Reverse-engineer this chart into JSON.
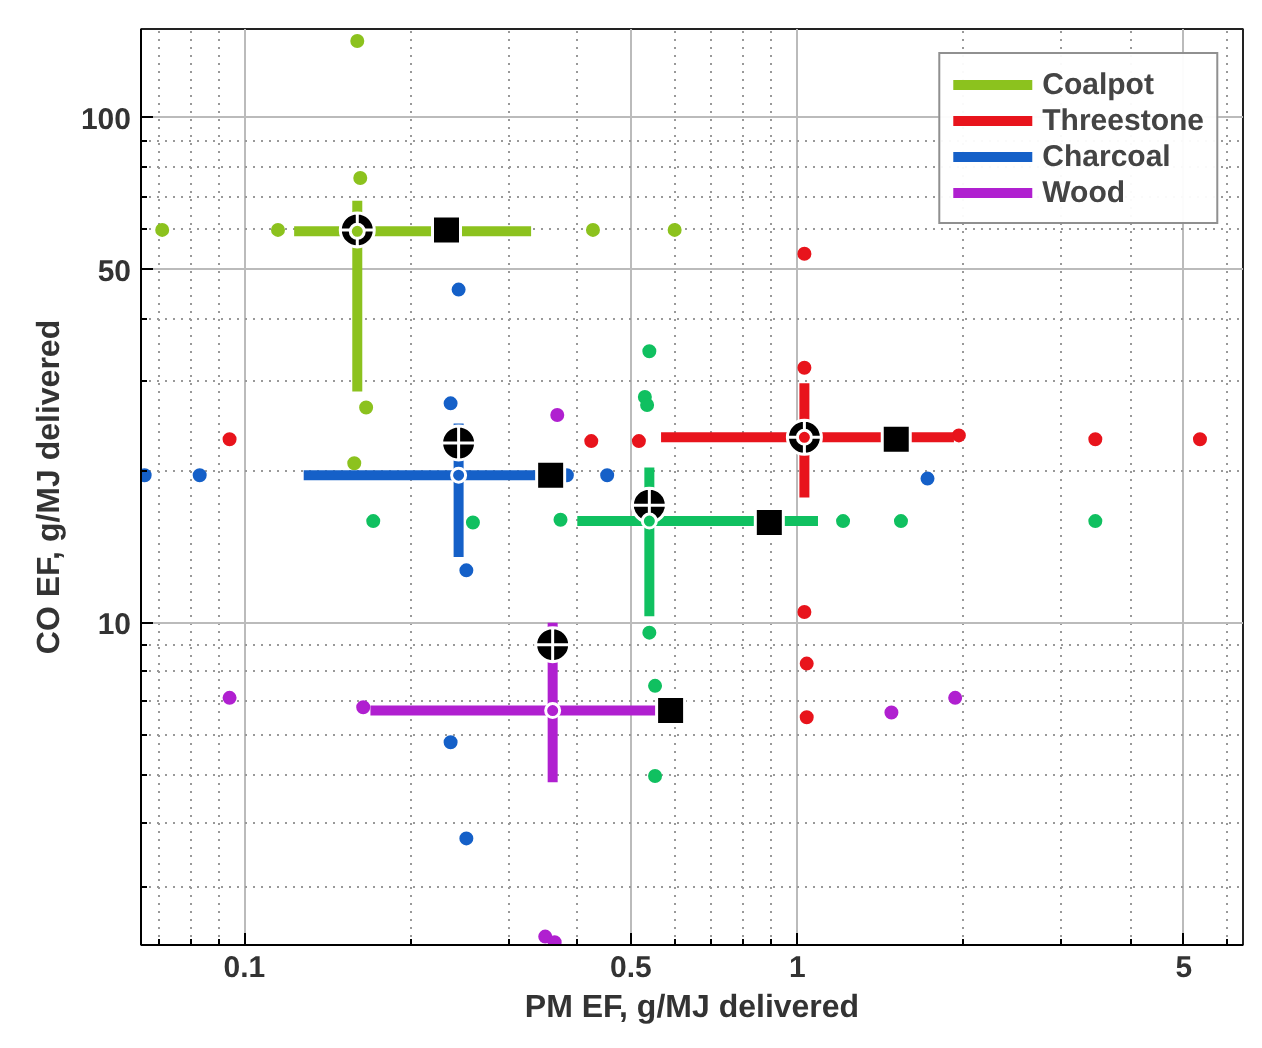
{
  "chart_data": {
    "type": "scatter",
    "xlabel": "PM EF, g/MJ delivered",
    "ylabel": "CO EF, g/MJ delivered",
    "log": "xy",
    "grid": true,
    "legend": "top right",
    "xlim": [
      0.065,
      6.4
    ],
    "ylim": [
      2.3,
      150
    ],
    "xticks": [
      {
        "value": 0.07,
        "label": null
      },
      {
        "value": 0.08,
        "label": null
      },
      {
        "value": 0.09,
        "label": null
      },
      0.1,
      {
        "value": 0.2,
        "label": null
      },
      {
        "value": 0.3,
        "label": null
      },
      {
        "value": 0.4,
        "label": null
      },
      0.5,
      {
        "value": 0.6,
        "label": null
      },
      {
        "value": 0.7,
        "label": null
      },
      {
        "value": 0.8,
        "label": null
      },
      {
        "value": 0.9,
        "label": null
      },
      1,
      {
        "value": 2,
        "label": null
      },
      {
        "value": 3,
        "label": null
      },
      {
        "value": 4,
        "label": null
      },
      5,
      {
        "value": 6,
        "label": null
      }
    ],
    "yticks": [
      {
        "value": 3,
        "label": null
      },
      {
        "value": 4,
        "label": null
      },
      {
        "value": 5,
        "label": null
      },
      {
        "value": 6,
        "label": null
      },
      {
        "value": 7,
        "label": null
      },
      {
        "value": 8,
        "label": null
      },
      {
        "value": 9,
        "label": null
      },
      10,
      {
        "value": 20,
        "label": null
      },
      {
        "value": 30,
        "label": null
      },
      {
        "value": 40,
        "label": null
      },
      50,
      {
        "value": 60,
        "label": null
      },
      {
        "value": 70,
        "label": null
      },
      {
        "value": 80,
        "label": null
      },
      {
        "value": 90,
        "label": null
      },
      100
    ],
    "series": [
      {
        "marker": "circle",
        "color": "#8cc21e",
        "x": [
          0.16,
          0.162,
          0.071,
          0.115,
          0.427,
          0.6,
          0.166,
          0.158
        ],
        "values": [
          142,
          76,
          60,
          60,
          60,
          60,
          26.7,
          20.7
        ]
      },
      {
        "marker": "circle",
        "color": "#e8141c",
        "x": [
          0.094,
          0.424,
          0.517,
          1.03,
          1.03,
          1.96,
          3.46,
          5.35,
          1.03,
          1.04,
          1.04
        ],
        "values": [
          23.1,
          22.9,
          22.9,
          53.8,
          32,
          23.5,
          23.1,
          23.1,
          10.5,
          8.3,
          6.5
        ]
      },
      {
        "marker": "circle",
        "color": "#1560c8",
        "x": [
          0.066,
          0.083,
          0.244,
          0.236,
          0.383,
          0.453,
          1.72,
          0.252,
          0.236,
          0.252
        ],
        "values": [
          19.6,
          19.6,
          45.7,
          27.2,
          19.6,
          19.6,
          19.3,
          12.7,
          5.8,
          3.74
        ]
      },
      {
        "marker": "circle",
        "color": "#10c060",
        "x": [
          0.54,
          0.53,
          0.535,
          0.171,
          0.259,
          0.373,
          0.54,
          0.553,
          0.553,
          1.21,
          1.54,
          3.46
        ],
        "values": [
          34.5,
          28,
          27,
          15.9,
          15.8,
          16,
          9.56,
          7.5,
          4.97,
          15.9,
          15.9,
          15.9
        ]
      },
      {
        "marker": "circle",
        "color": "#b020d0",
        "x": [
          0.368,
          0.094,
          0.164,
          0.35,
          0.364,
          1.48,
          1.93
        ],
        "values": [
          25.8,
          7.1,
          6.8,
          2.39,
          2.33,
          6.64,
          7.1
        ]
      },
      {
        "marker": "circle",
        "name": "Coalpot",
        "color": "#8cc21e",
        "x": [
          0.16
        ],
        "values": [
          59.6
        ],
        "xerrors": [
          [
            0.123,
            0.33
          ]
        ],
        "errors": [
          [
            28.7,
            68.5
          ]
        ]
      },
      {
        "marker": "circle",
        "name": "Threestone",
        "color": "#e8141c",
        "x": [
          1.03
        ],
        "values": [
          23.3
        ],
        "xerrors": [
          [
            0.567,
            1.92
          ]
        ],
        "errors": [
          [
            17.7,
            29.8
          ]
        ]
      },
      {
        "marker": "circle",
        "name": "Charcoal",
        "color": "#1560c8",
        "x": [
          0.244
        ],
        "values": [
          19.6
        ],
        "xerrors": [
          [
            0.128,
            0.377
          ]
        ],
        "errors": [
          [
            13.5,
            24.8
          ]
        ]
      },
      {
        "marker": "circle",
        "color": "#10c060",
        "x": [
          0.54
        ],
        "values": [
          15.9
        ],
        "xerrors": [
          [
            0.4,
            1.09
          ]
        ],
        "errors": [
          [
            10.3,
            20.3
          ]
        ]
      },
      {
        "marker": "circle",
        "name": "Wood",
        "color": "#b020d0",
        "x": [
          0.361
        ],
        "values": [
          6.7
        ],
        "xerrors": [
          [
            0.169,
            0.62
          ]
        ],
        "errors": [
          [
            4.83,
            10
          ]
        ]
      },
      {
        "marker": "circle",
        "color": "#000000",
        "x": [
          0.16,
          1.03,
          0.244,
          0.54,
          0.361
        ],
        "values": [
          60,
          23.3,
          22.7,
          17.1,
          9.05
        ]
      },
      {
        "marker": "square",
        "color": "#000000",
        "x": [
          0.232,
          1.51,
          0.358,
          0.89,
          0.59
        ],
        "values": [
          60,
          23.1,
          19.6,
          15.8,
          6.7
        ]
      }
    ]
  }
}
